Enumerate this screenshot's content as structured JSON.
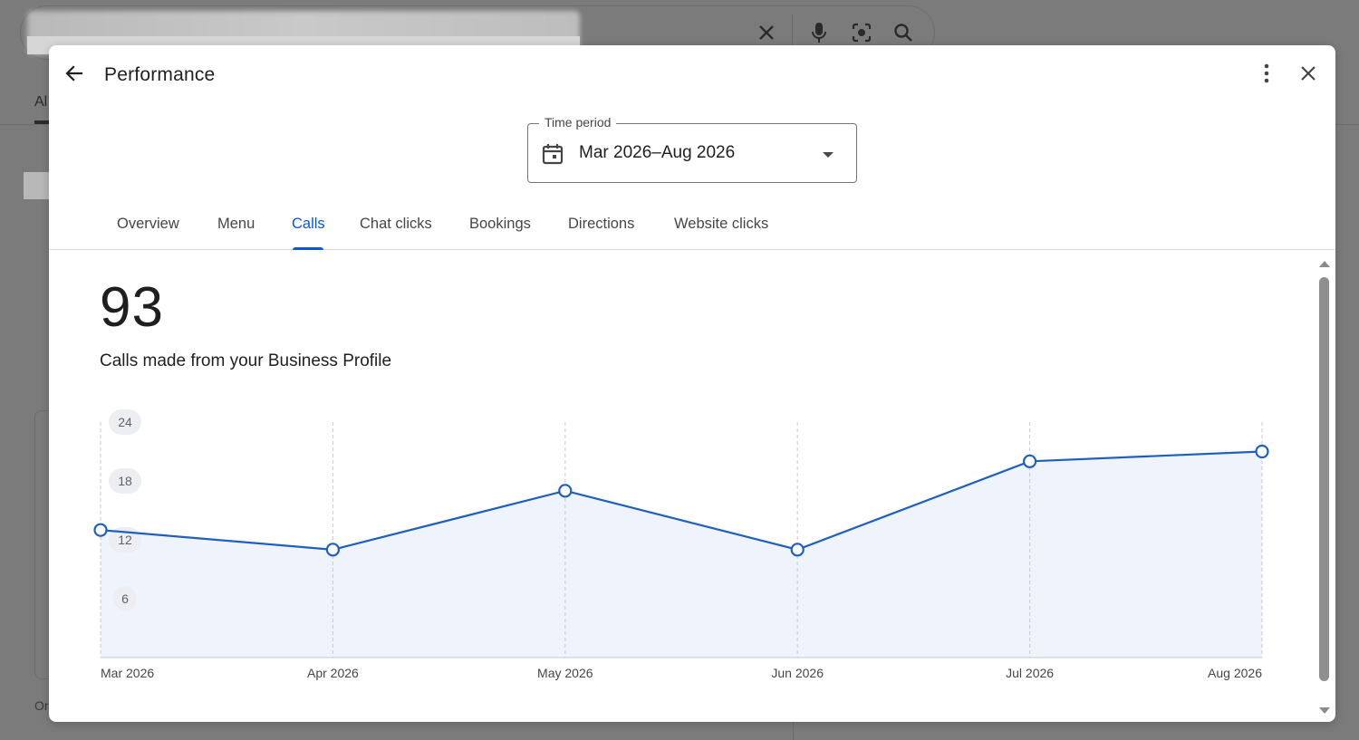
{
  "background": {
    "search_actions": [
      "clear-icon",
      "mic-icon",
      "lens-icon",
      "search-icon"
    ],
    "tab_fragment": "Al",
    "text_fragment": "Or"
  },
  "dialog": {
    "title": "Performance",
    "back_icon": "arrow-back-icon",
    "more_icon": "more-vert-icon",
    "close_icon": "close-icon"
  },
  "time_period": {
    "label": "Time period",
    "value": "Mar 2026–Aug 2026",
    "icon": "calendar-icon"
  },
  "tabs": [
    {
      "label": "Overview",
      "active": false
    },
    {
      "label": "Menu",
      "active": false
    },
    {
      "label": "Calls",
      "active": true
    },
    {
      "label": "Chat clicks",
      "active": false
    },
    {
      "label": "Bookings",
      "active": false
    },
    {
      "label": "Directions",
      "active": false
    },
    {
      "label": "Website clicks",
      "active": false
    }
  ],
  "metric": {
    "total": "93",
    "description": "Calls made from your Business Profile"
  },
  "colors": {
    "accent": "#0b57d0",
    "line": "#1f5fbf",
    "area_fill": "#eef3fc"
  },
  "chart_data": {
    "type": "line",
    "categories": [
      "Mar 2026",
      "Apr 2026",
      "May 2026",
      "Jun 2026",
      "Jul 2026",
      "Aug 2026"
    ],
    "series": [
      {
        "values": [
          13,
          11,
          17,
          11,
          20,
          21
        ]
      }
    ],
    "yticks": [
      6,
      12,
      18,
      24
    ],
    "ylim": [
      0,
      24
    ],
    "grid": "vertical-dashed",
    "area_fill": true
  }
}
